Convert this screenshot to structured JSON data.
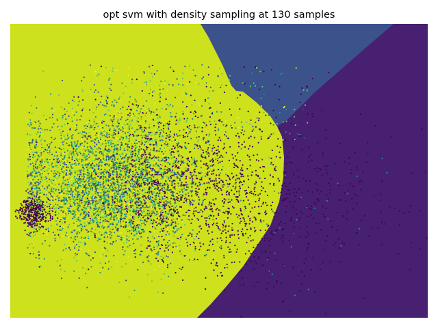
{
  "chart_data": {
    "type": "scatter",
    "title": "opt svm with density sampling at 130 samples",
    "axes_visible": false,
    "background_regions": [
      {
        "name": "class-4-region",
        "color": "#cde11d"
      },
      {
        "name": "class-1-region",
        "color": "#3b528b"
      },
      {
        "name": "class-0-region",
        "color": "#482071"
      }
    ],
    "point_colors": {
      "class_0": "#440154",
      "class_1": "#3b528b",
      "class_2": "#21918c",
      "class_3": "#5ec962",
      "class_4": "#fde725"
    },
    "point_size": "small",
    "approx_point_count": 6000
  }
}
